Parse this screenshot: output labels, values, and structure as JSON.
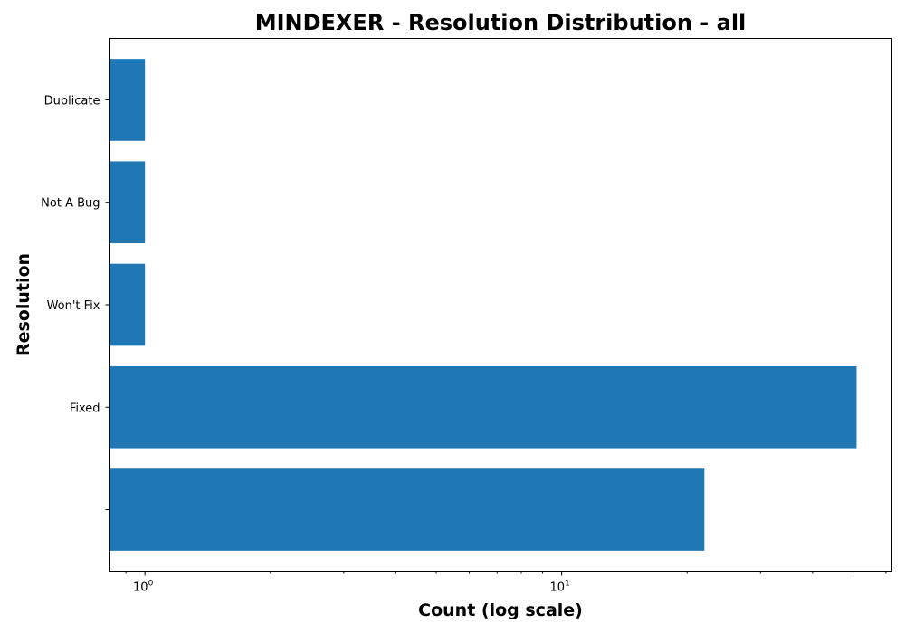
{
  "chart_data": {
    "type": "bar",
    "orientation": "horizontal",
    "title": "MINDEXER - Resolution Distribution - all",
    "xlabel": "Count (log scale)",
    "ylabel": "Resolution",
    "x_scale": "log",
    "xlim": [
      0.82,
      62
    ],
    "categories": [
      "",
      "Fixed",
      "Won't Fix",
      "Not A Bug",
      "Duplicate"
    ],
    "values": [
      22,
      51,
      1,
      1,
      1
    ],
    "bar_color": "#1f77b4",
    "x_ticks": [
      {
        "base": "10",
        "exp": "0",
        "value": 1
      },
      {
        "base": "10",
        "exp": "1",
        "value": 10
      }
    ],
    "grid": false,
    "legend": "none"
  }
}
